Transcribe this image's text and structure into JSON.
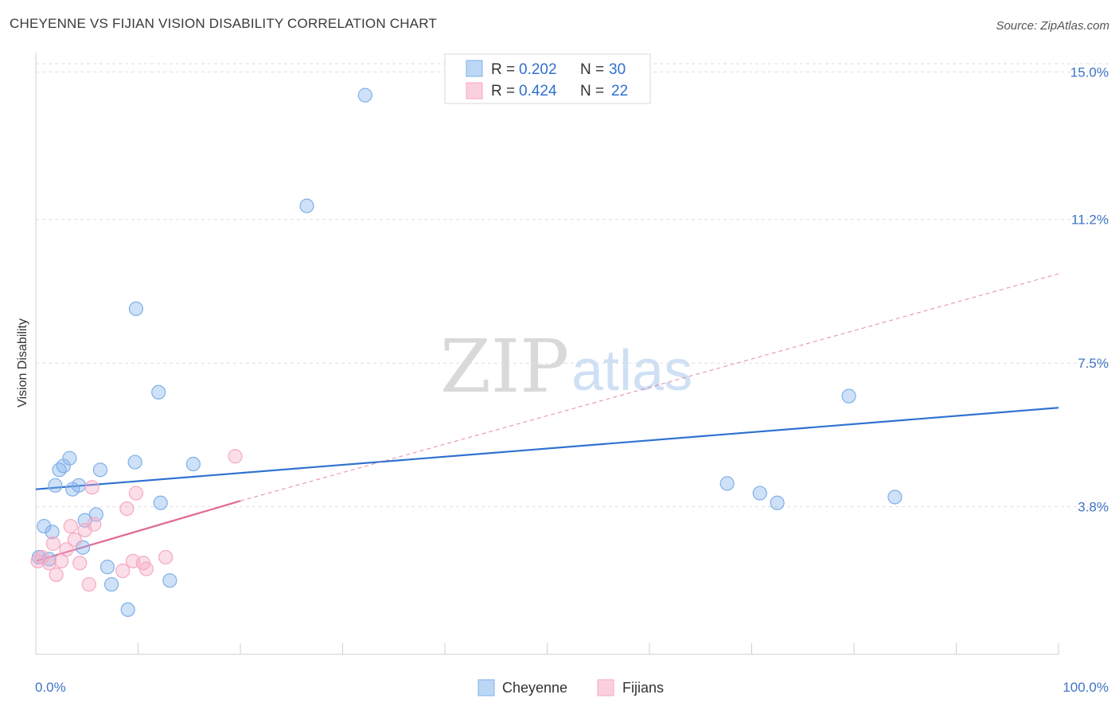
{
  "title": "CHEYENNE VS FIJIAN VISION DISABILITY CORRELATION CHART",
  "source": "Source: ZipAtlas.com",
  "watermark": {
    "zip": "ZIP",
    "atlas": "atlas"
  },
  "chart_data": {
    "type": "scatter",
    "ylabel": "Vision Disability",
    "xlabel": "",
    "xlim": [
      0,
      100
    ],
    "ylim": [
      0,
      15.5
    ],
    "x_tick_labels": [
      "0.0%",
      "100.0%"
    ],
    "y_ticks": [
      3.8,
      7.5,
      11.2,
      15.0
    ],
    "y_tick_labels": [
      "3.8%",
      "7.5%",
      "11.2%",
      "15.0%"
    ],
    "grid": true,
    "legend_position": "top-center",
    "series": [
      {
        "name": "Cheyenne",
        "color": "#7fb0ea",
        "line_color": "#2f72d0",
        "R": "0.202",
        "N": "30",
        "trend": {
          "x": [
            0,
            100
          ],
          "y": [
            4.25,
            6.35
          ]
        },
        "points": [
          [
            0.3,
            2.5
          ],
          [
            0.8,
            3.3
          ],
          [
            1.3,
            2.45
          ],
          [
            1.6,
            3.15
          ],
          [
            1.9,
            4.35
          ],
          [
            2.3,
            4.75
          ],
          [
            2.7,
            4.85
          ],
          [
            3.3,
            5.05
          ],
          [
            3.6,
            4.25
          ],
          [
            4.2,
            4.35
          ],
          [
            4.6,
            2.75
          ],
          [
            4.8,
            3.45
          ],
          [
            5.9,
            3.6
          ],
          [
            6.3,
            4.75
          ],
          [
            7.0,
            2.25
          ],
          [
            7.4,
            1.8
          ],
          [
            9.0,
            1.15
          ],
          [
            9.7,
            4.95
          ],
          [
            9.8,
            8.9
          ],
          [
            12.0,
            6.75
          ],
          [
            12.2,
            3.9
          ],
          [
            13.1,
            1.9
          ],
          [
            15.4,
            4.9
          ],
          [
            26.5,
            11.55
          ],
          [
            32.2,
            14.4
          ],
          [
            67.6,
            4.4
          ],
          [
            70.8,
            4.15
          ],
          [
            72.5,
            3.9
          ],
          [
            79.5,
            6.65
          ],
          [
            84.0,
            4.05
          ]
        ]
      },
      {
        "name": "Fijians",
        "color": "#f4a9c2",
        "line_color": "#e06a98",
        "R": "0.424",
        "N": "22",
        "trend": {
          "x": [
            0,
            20
          ],
          "y": [
            2.4,
            3.95
          ]
        },
        "trend_extension": {
          "x": [
            20,
            100
          ],
          "y": [
            3.95,
            9.8
          ]
        },
        "points": [
          [
            0.2,
            2.4
          ],
          [
            0.6,
            2.5
          ],
          [
            1.3,
            2.35
          ],
          [
            1.7,
            2.85
          ],
          [
            2.0,
            2.05
          ],
          [
            2.5,
            2.4
          ],
          [
            3.0,
            2.7
          ],
          [
            3.4,
            3.3
          ],
          [
            3.8,
            2.95
          ],
          [
            4.3,
            2.35
          ],
          [
            4.8,
            3.2
          ],
          [
            5.2,
            1.8
          ],
          [
            5.5,
            4.3
          ],
          [
            5.7,
            3.35
          ],
          [
            8.5,
            2.15
          ],
          [
            8.9,
            3.75
          ],
          [
            9.5,
            2.4
          ],
          [
            9.8,
            4.15
          ],
          [
            10.5,
            2.35
          ],
          [
            10.8,
            2.2
          ],
          [
            12.7,
            2.5
          ],
          [
            19.5,
            5.1
          ]
        ]
      }
    ]
  }
}
